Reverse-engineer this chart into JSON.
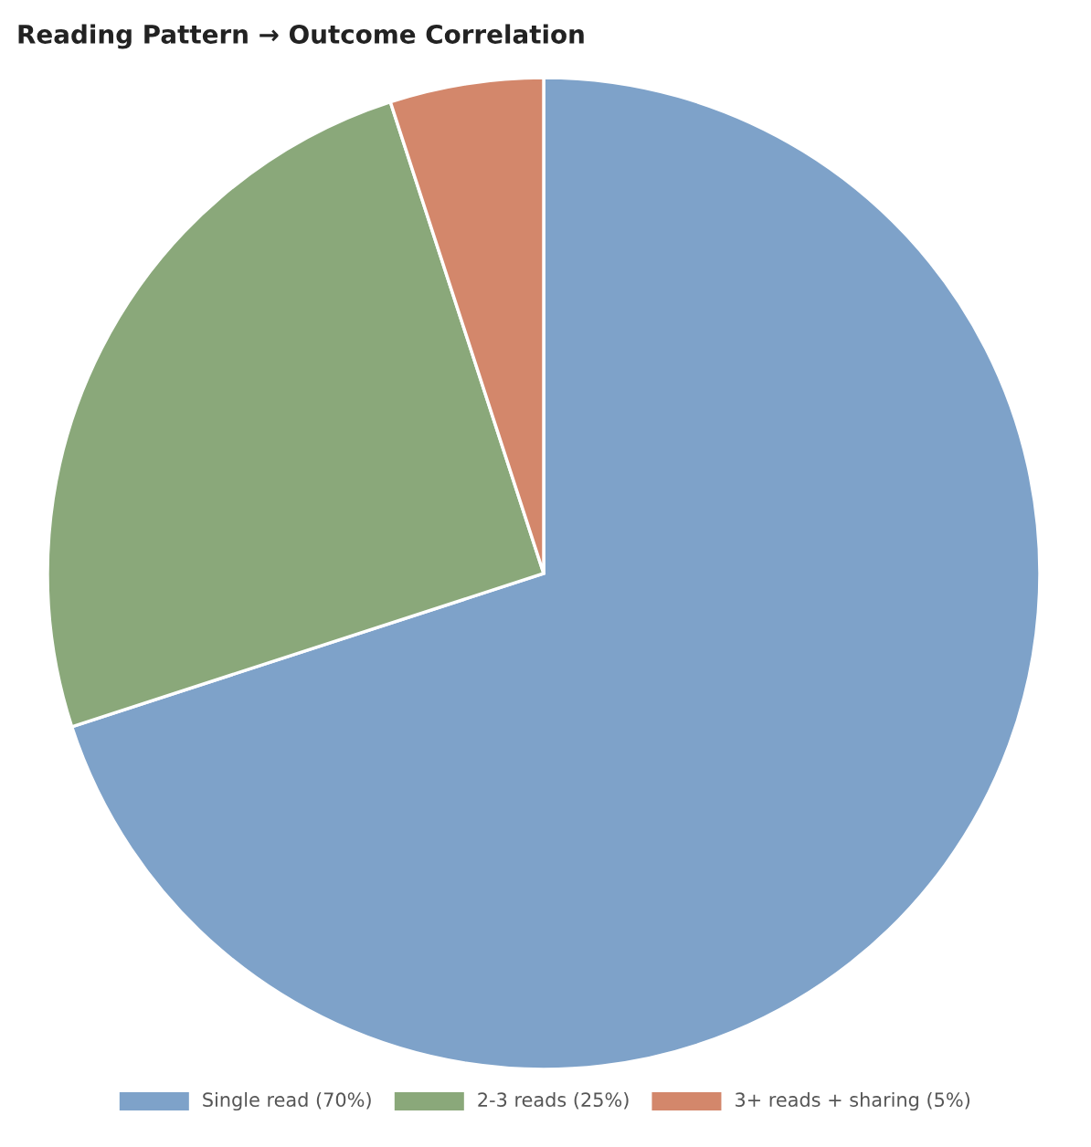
{
  "chart_data": {
    "type": "pie",
    "title": "Reading Pattern → Outcome Correlation",
    "categories": [
      "Single read (70%)",
      "2-3 reads (25%)",
      "3+ reads + sharing (5%)"
    ],
    "values": [
      70,
      25,
      5
    ],
    "colors": [
      "#7ea2c9",
      "#8aa87a",
      "#d3876b"
    ],
    "legend": "bottom"
  }
}
